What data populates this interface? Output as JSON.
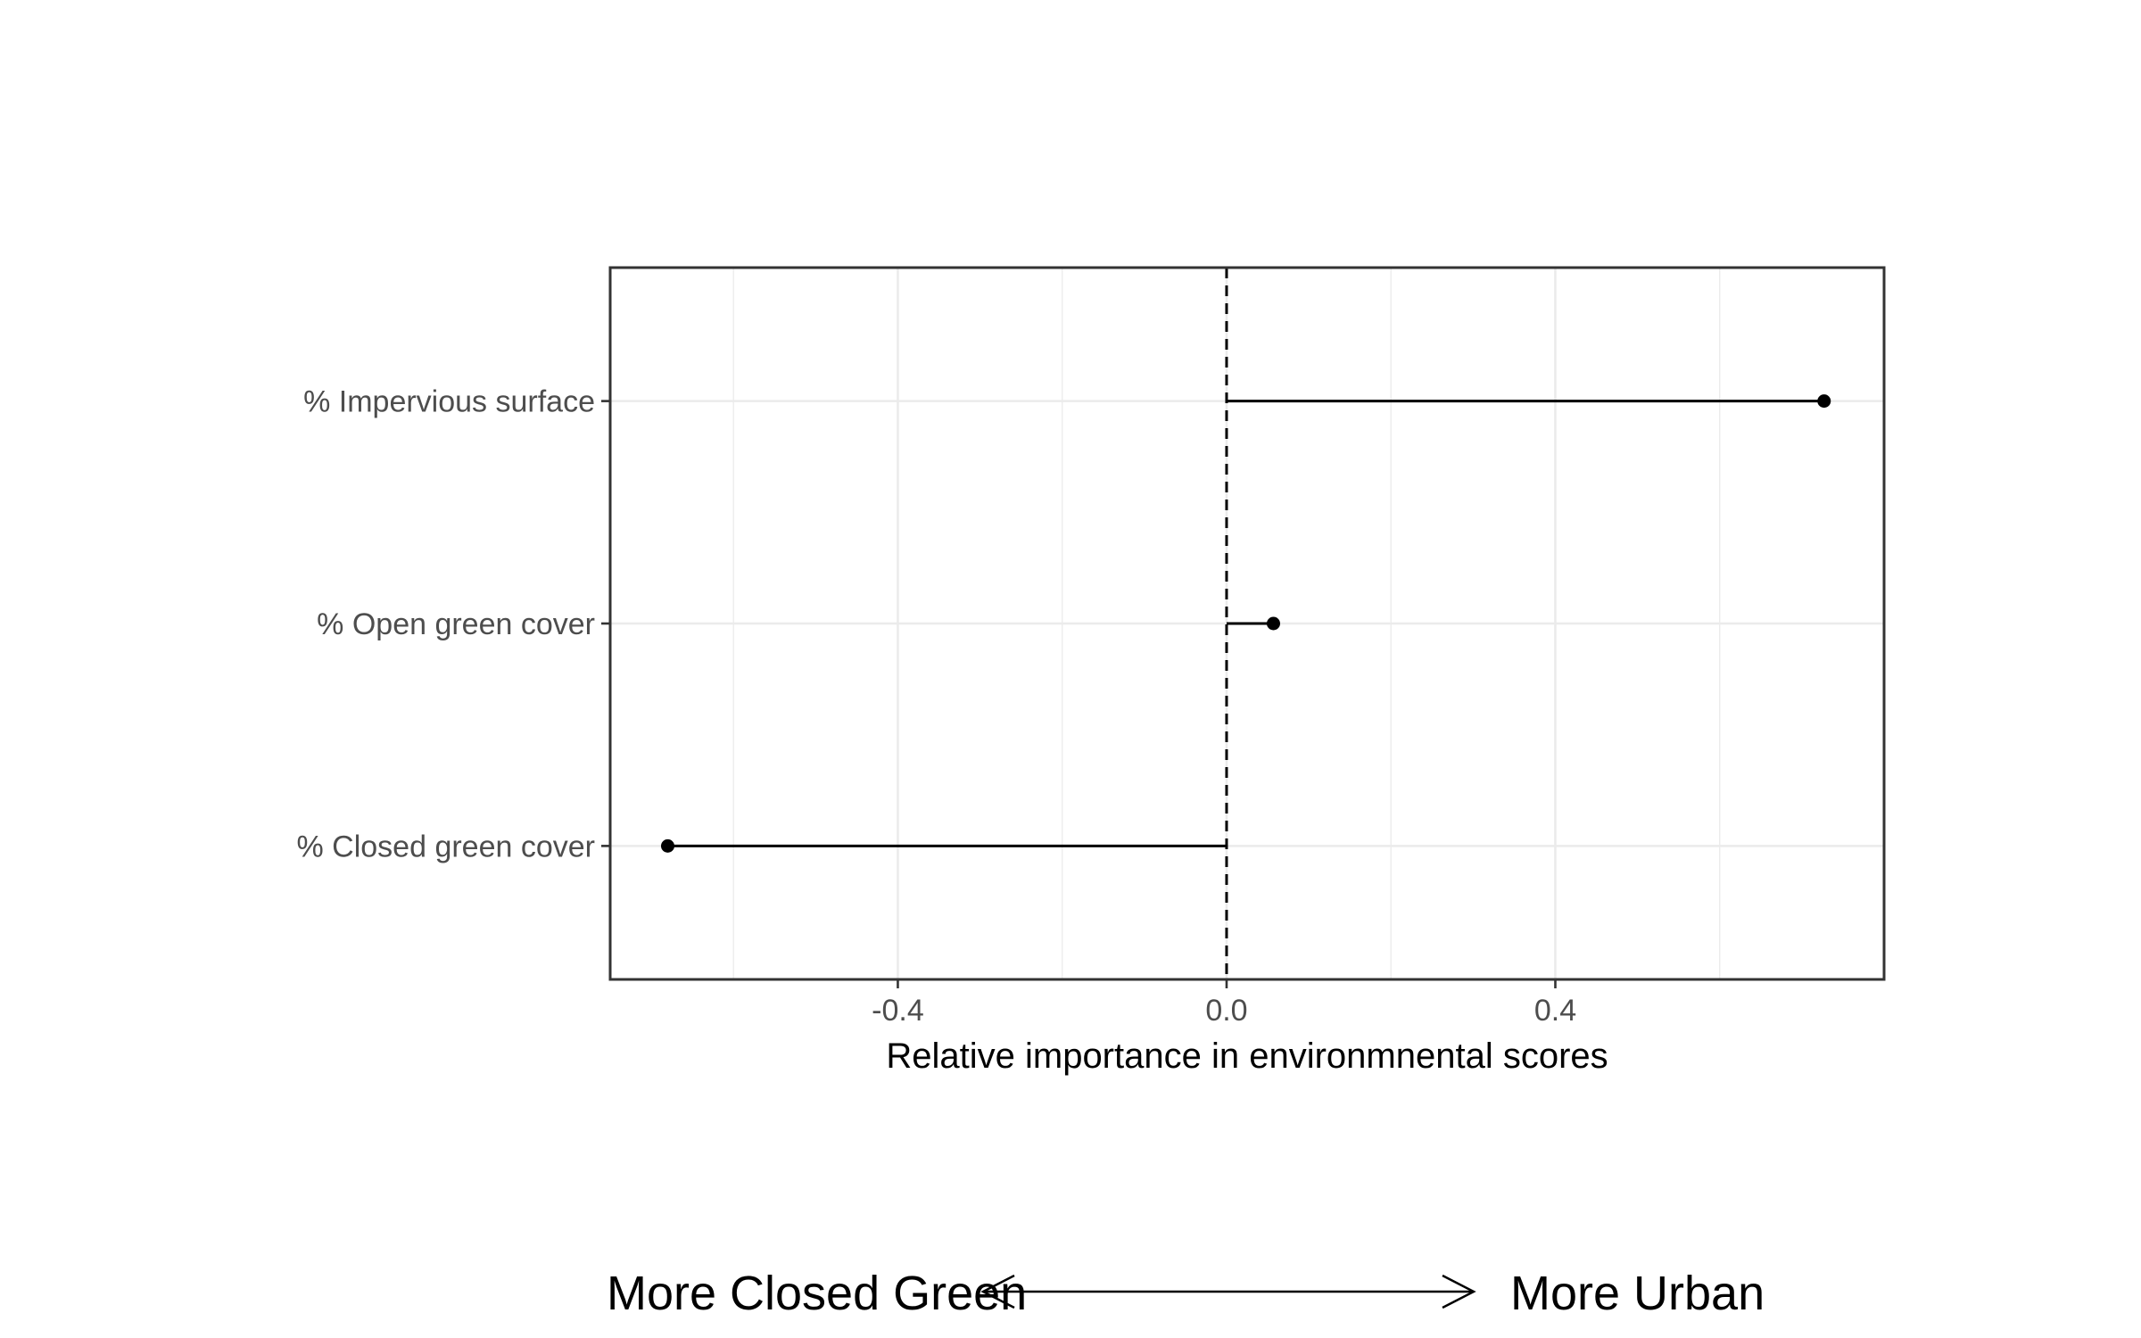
{
  "chart_data": {
    "type": "lollipop",
    "categories": [
      "% Impervious surface",
      "% Open green cover",
      "% Closed green cover"
    ],
    "values": [
      0.727,
      0.057,
      -0.68
    ],
    "xlabel": "Relative importance in environmnental scores",
    "ylabel": "",
    "xlim": [
      -0.75,
      0.8
    ],
    "x_ticks": [
      -0.4,
      0.0,
      0.4
    ],
    "x_tick_labels": [
      "-0.4",
      "0.0",
      "0.4"
    ],
    "reference_line": {
      "x": 0.0,
      "style": "dashed"
    },
    "grid": true,
    "theme": "bw",
    "colors": {
      "point": "#000000",
      "line": "#000000",
      "grid": "#ebebeb",
      "border": "#333333"
    }
  },
  "annotation": {
    "left_label": "More Closed Green",
    "right_label": "More Urban",
    "arrow": "both"
  }
}
